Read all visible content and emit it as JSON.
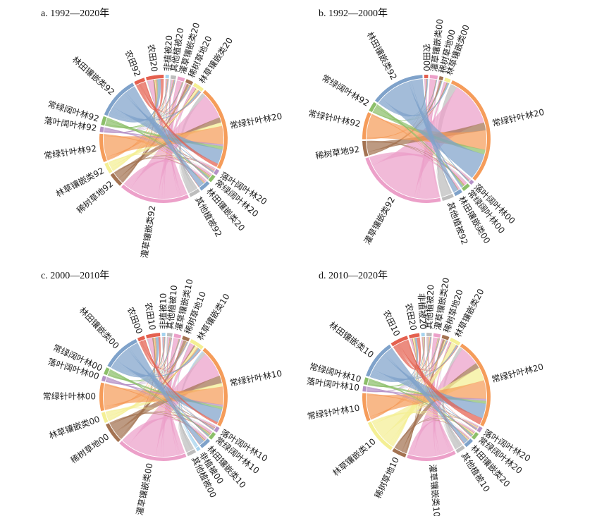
{
  "colors": {
    "农田": "#e4604f",
    "林田镶嵌类": "#7fa2ca",
    "常绿阔叶林": "#8cbf6a",
    "落叶阔叶林": "#b592c7",
    "常绿针叶林": "#f59c5a",
    "林草镶嵌类": "#f4ef94",
    "稀树草地": "#a47352",
    "灌草镶嵌类": "#eca0c9",
    "其他植被": "#bdbdbd",
    "非植被": "#a6d3ee"
  },
  "chart_data": [
    {
      "type": "chord",
      "title": "a. 1992—2020年",
      "segments": [
        {
          "label": "农田20",
          "class": "农田",
          "value": 5
        },
        {
          "label": "非植被20",
          "class": "非植被",
          "value": 1
        },
        {
          "label": "其他植被20",
          "class": "其他植被",
          "value": 1.5
        },
        {
          "label": "灌草镶嵌类20",
          "class": "灌草镶嵌类",
          "value": 2
        },
        {
          "label": "稀树草地20",
          "class": "稀树草地",
          "value": 2
        },
        {
          "label": "林草镶嵌类20",
          "class": "林草镶嵌类",
          "value": 3
        },
        {
          "label": "常绿针叶林20",
          "class": "常绿针叶林",
          "value": 24
        },
        {
          "label": "落叶阔叶林20",
          "class": "落叶阔叶林",
          "value": 1.5
        },
        {
          "label": "常绿阔叶林20",
          "class": "常绿阔叶林",
          "value": 2
        },
        {
          "label": "林田镶嵌类20",
          "class": "林田镶嵌类",
          "value": 3
        },
        {
          "label": "其他植被92",
          "class": "其他植被",
          "value": 3
        },
        {
          "label": "灌草镶嵌类92",
          "class": "灌草镶嵌类",
          "value": 20
        },
        {
          "label": "稀树草地92",
          "class": "稀树草地",
          "value": 4
        },
        {
          "label": "林草镶嵌类92",
          "class": "林草镶嵌类",
          "value": 3
        },
        {
          "label": "常绿针叶林92",
          "class": "常绿针叶林",
          "value": 8
        },
        {
          "label": "落叶阔叶林92",
          "class": "落叶阔叶林",
          "value": 1.5
        },
        {
          "label": "常绿阔叶林92",
          "class": "常绿阔叶林",
          "value": 2.5
        },
        {
          "label": "林田镶嵌类92",
          "class": "林田镶嵌类",
          "value": 12
        },
        {
          "label": "农田92",
          "class": "农田",
          "value": 3
        }
      ]
    },
    {
      "type": "chord",
      "title": "b. 1992—2000年",
      "segments": [
        {
          "label": "农田00",
          "class": "农田",
          "value": 1
        },
        {
          "label": "灌草镶嵌类00",
          "class": "灌草镶嵌类",
          "value": 2
        },
        {
          "label": "稀树草地00",
          "class": "稀树草地",
          "value": 1
        },
        {
          "label": "林草镶嵌类00",
          "class": "林草镶嵌类",
          "value": 1.5
        },
        {
          "label": "常绿针叶林20",
          "class": "常绿针叶林",
          "value": 30
        },
        {
          "label": "落叶阔叶林00",
          "class": "落叶阔叶林",
          "value": 1
        },
        {
          "label": "常绿阔叶林00",
          "class": "常绿阔叶林",
          "value": 2
        },
        {
          "label": "林田镶嵌类00",
          "class": "林田镶嵌类",
          "value": 2
        },
        {
          "label": "其他植被92",
          "class": "其他植被",
          "value": 3
        },
        {
          "label": "灌草镶嵌类92",
          "class": "灌草镶嵌类",
          "value": 24
        },
        {
          "label": "稀树草地92",
          "class": "稀树草地",
          "value": 4
        },
        {
          "label": "常绿针叶林92",
          "class": "常绿针叶林",
          "value": 7
        },
        {
          "label": "常绿阔叶林92",
          "class": "常绿阔叶林",
          "value": 2.5
        },
        {
          "label": "林田镶嵌类92",
          "class": "林田镶嵌类",
          "value": 14
        }
      ]
    },
    {
      "type": "chord",
      "title": "c. 2000—2010年",
      "segments": [
        {
          "label": "农田10",
          "class": "农田",
          "value": 4
        },
        {
          "label": "非植被10",
          "class": "非植被",
          "value": 1
        },
        {
          "label": "其他植被10",
          "class": "其他植被",
          "value": 1.5
        },
        {
          "label": "灌草镶嵌类10",
          "class": "灌草镶嵌类",
          "value": 2
        },
        {
          "label": "稀树草地10",
          "class": "稀树草地",
          "value": 2
        },
        {
          "label": "林草镶嵌类10",
          "class": "林草镶嵌类",
          "value": 4
        },
        {
          "label": "常绿针叶林10",
          "class": "常绿针叶林",
          "value": 24
        },
        {
          "label": "落叶阔叶林10",
          "class": "落叶阔叶林",
          "value": 1.5
        },
        {
          "label": "常绿阔叶林10",
          "class": "常绿阔叶林",
          "value": 2
        },
        {
          "label": "林田镶嵌类10",
          "class": "林田镶嵌类",
          "value": 3
        },
        {
          "label": "非植被00",
          "class": "非植被",
          "value": 1
        },
        {
          "label": "其他植被00",
          "class": "其他植被",
          "value": 2.5
        },
        {
          "label": "灌草镶嵌类00",
          "class": "灌草镶嵌类",
          "value": 20
        },
        {
          "label": "稀树草地00",
          "class": "稀树草地",
          "value": 6
        },
        {
          "label": "林草镶嵌类00",
          "class": "林草镶嵌类",
          "value": 3
        },
        {
          "label": "常绿针叶林00",
          "class": "常绿针叶林",
          "value": 8
        },
        {
          "label": "落叶阔叶林00",
          "class": "落叶阔叶林",
          "value": 1.5
        },
        {
          "label": "常绿阔叶林00",
          "class": "常绿阔叶林",
          "value": 2
        },
        {
          "label": "林田镶嵌类00",
          "class": "林田镶嵌类",
          "value": 11
        },
        {
          "label": "农田00",
          "class": "农田",
          "value": 2
        }
      ]
    },
    {
      "type": "chord",
      "title": "d. 2010—2020年",
      "segments": [
        {
          "label": "农田20",
          "class": "农田",
          "value": 3
        },
        {
          "label": "非植被20",
          "class": "非植被",
          "value": 1
        },
        {
          "label": "其他植被20",
          "class": "其他植被",
          "value": 1.5
        },
        {
          "label": "灌草镶嵌类20",
          "class": "灌草镶嵌类",
          "value": 2
        },
        {
          "label": "稀树草地20",
          "class": "稀树草地",
          "value": 2
        },
        {
          "label": "林草镶嵌类20",
          "class": "林草镶嵌类",
          "value": 3
        },
        {
          "label": "常绿针叶林20",
          "class": "常绿针叶林",
          "value": 26
        },
        {
          "label": "落叶阔叶林20",
          "class": "落叶阔叶林",
          "value": 1.5
        },
        {
          "label": "常绿阔叶林20",
          "class": "常绿阔叶林",
          "value": 2
        },
        {
          "label": "林田镶嵌类20",
          "class": "林田镶嵌类",
          "value": 2.5
        },
        {
          "label": "其他植被10",
          "class": "其他植被",
          "value": 2.5
        },
        {
          "label": "灌草镶嵌类10",
          "class": "灌草镶嵌类",
          "value": 14
        },
        {
          "label": "稀树草地10",
          "class": "稀树草地",
          "value": 4
        },
        {
          "label": "林草镶嵌类10",
          "class": "林草镶嵌类",
          "value": 10
        },
        {
          "label": "常绿针叶林10",
          "class": "常绿针叶林",
          "value": 8
        },
        {
          "label": "落叶阔叶林10",
          "class": "落叶阔叶林",
          "value": 1.5
        },
        {
          "label": "常绿阔叶林10",
          "class": "常绿阔叶林",
          "value": 2
        },
        {
          "label": "林田镶嵌类10",
          "class": "林田镶嵌类",
          "value": 11
        },
        {
          "label": "农田10",
          "class": "农田",
          "value": 5
        }
      ]
    }
  ]
}
